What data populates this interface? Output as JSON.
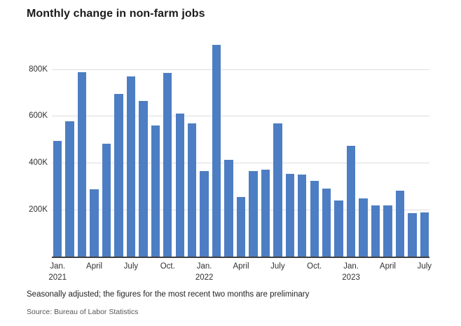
{
  "chart_data": {
    "type": "bar",
    "title": "Monthly change in non-farm jobs",
    "values_unit": "thousands of jobs",
    "x": [
      "2021-01",
      "2021-02",
      "2021-03",
      "2021-04",
      "2021-05",
      "2021-06",
      "2021-07",
      "2021-08",
      "2021-09",
      "2021-10",
      "2021-11",
      "2021-12",
      "2022-01",
      "2022-02",
      "2022-03",
      "2022-04",
      "2022-05",
      "2022-06",
      "2022-07",
      "2022-08",
      "2022-09",
      "2022-10",
      "2022-11",
      "2022-12",
      "2023-01",
      "2023-02",
      "2023-03",
      "2023-04",
      "2023-05",
      "2023-06",
      "2023-07"
    ],
    "values": [
      495,
      576,
      787,
      288,
      482,
      695,
      769,
      663,
      559,
      784,
      611,
      569,
      364,
      904,
      414,
      254,
      364,
      370,
      568,
      352,
      350,
      324,
      290,
      239,
      472,
      248,
      217,
      217,
      281,
      185,
      187
    ],
    "ylim": [
      0,
      975
    ],
    "yticks": [
      {
        "value": 200,
        "label": "200K"
      },
      {
        "value": 400,
        "label": "400K"
      },
      {
        "value": 600,
        "label": "600K"
      },
      {
        "value": 800,
        "label": "800K"
      }
    ],
    "xticks": [
      {
        "index": 0,
        "label": "Jan.",
        "year": "2021"
      },
      {
        "index": 3,
        "label": "April"
      },
      {
        "index": 6,
        "label": "July"
      },
      {
        "index": 9,
        "label": "Oct."
      },
      {
        "index": 12,
        "label": "Jan.",
        "year": "2022"
      },
      {
        "index": 15,
        "label": "April"
      },
      {
        "index": 18,
        "label": "July"
      },
      {
        "index": 21,
        "label": "Oct."
      },
      {
        "index": 24,
        "label": "Jan.",
        "year": "2023"
      },
      {
        "index": 27,
        "label": "April"
      },
      {
        "index": 30,
        "label": "July"
      }
    ],
    "grid": "horizontal",
    "legend_position": "none",
    "bar_color": "#4d7ec3"
  },
  "footnote": "Seasonally adjusted; the figures for the most recent two months are preliminary",
  "source": "Source: Bureau of Labor Statistics",
  "colors": {
    "background": "#ffffff",
    "bar": "#4d7ec3",
    "gridline": "#dedede",
    "axis_line": "#3f3f3f",
    "title_text": "#1a1a1a",
    "tick_text": "#303030",
    "footnote_text": "#222222",
    "source_text": "#555555"
  }
}
